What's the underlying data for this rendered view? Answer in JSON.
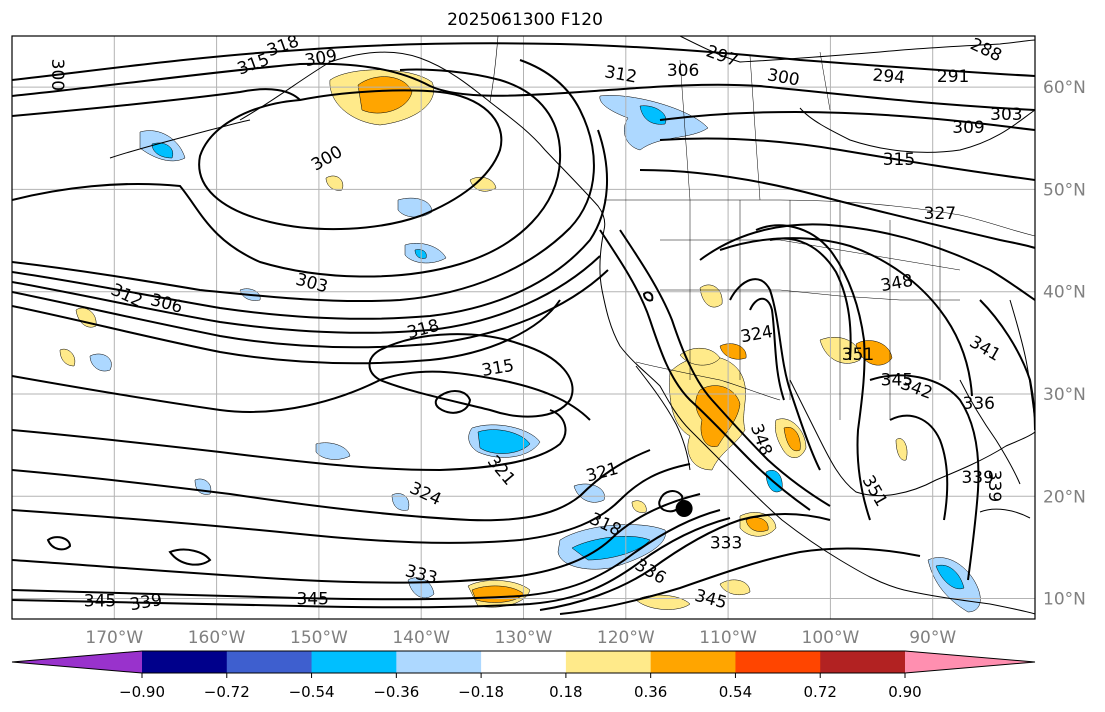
{
  "title": "2025061300 F120",
  "map": {
    "lon_range": [
      -180,
      -80
    ],
    "lat_range": [
      8,
      65
    ],
    "lon_ticks": [
      -170,
      -160,
      -150,
      -140,
      -130,
      -120,
      -110,
      -100,
      -90
    ],
    "lon_labels": [
      "170°W",
      "160°W",
      "150°W",
      "140°W",
      "130°W",
      "120°W",
      "110°W",
      "100°W",
      "90°W"
    ],
    "lat_ticks": [
      10,
      20,
      30,
      40,
      50,
      60
    ],
    "lat_labels": [
      "10°N",
      "20°N",
      "30°N",
      "40°N",
      "50°N",
      "60°N"
    ],
    "grid": true,
    "tick_label_color": "#808080",
    "marker": {
      "lon": -114.3,
      "lat": 18.8,
      "name": "storm-center-marker"
    }
  },
  "contours": {
    "color": "#000000",
    "labels": [
      {
        "text": "300",
        "lon": -175.6,
        "lat": 61.2,
        "rot": 90
      },
      {
        "text": "315",
        "lon": -156.4,
        "lat": 62.2,
        "rot": -20
      },
      {
        "text": "318",
        "lon": -153.5,
        "lat": 64.0,
        "rot": -20
      },
      {
        "text": "309",
        "lon": -149.8,
        "lat": 62.8,
        "rot": -10
      },
      {
        "text": "300",
        "lon": -149.2,
        "lat": 53.0,
        "rot": -30
      },
      {
        "text": "297",
        "lon": -110.6,
        "lat": 63.0,
        "rot": 20
      },
      {
        "text": "312",
        "lon": -120.5,
        "lat": 61.2,
        "rot": 10
      },
      {
        "text": "306",
        "lon": -114.4,
        "lat": 61.6,
        "rot": 0
      },
      {
        "text": "300",
        "lon": -104.6,
        "lat": 60.9,
        "rot": 10
      },
      {
        "text": "294",
        "lon": -94.3,
        "lat": 61.0,
        "rot": 5
      },
      {
        "text": "291",
        "lon": -88.0,
        "lat": 61.0,
        "rot": 0
      },
      {
        "text": "288",
        "lon": -84.8,
        "lat": 63.6,
        "rot": 25
      },
      {
        "text": "303",
        "lon": -82.8,
        "lat": 57.3,
        "rot": 0
      },
      {
        "text": "309",
        "lon": -86.5,
        "lat": 56.0,
        "rot": 0
      },
      {
        "text": "315",
        "lon": -93.3,
        "lat": 52.9,
        "rot": 0
      },
      {
        "text": "327",
        "lon": -89.3,
        "lat": 47.6,
        "rot": 0
      },
      {
        "text": "303",
        "lon": -150.7,
        "lat": 40.8,
        "rot": 15
      },
      {
        "text": "312",
        "lon": -168.8,
        "lat": 39.6,
        "rot": 25
      },
      {
        "text": "306",
        "lon": -164.9,
        "lat": 38.8,
        "rot": 15
      },
      {
        "text": "318",
        "lon": -139.8,
        "lat": 36.3,
        "rot": -15
      },
      {
        "text": "315",
        "lon": -132.5,
        "lat": 32.5,
        "rot": -10
      },
      {
        "text": "324",
        "lon": -107.2,
        "lat": 35.8,
        "rot": -10
      },
      {
        "text": "348",
        "lon": -93.5,
        "lat": 40.8,
        "rot": -10
      },
      {
        "text": "351",
        "lon": -97.3,
        "lat": 33.8,
        "rot": 0
      },
      {
        "text": "345",
        "lon": -93.5,
        "lat": 31.3,
        "rot": 0
      },
      {
        "text": "342",
        "lon": -91.6,
        "lat": 30.5,
        "rot": 20
      },
      {
        "text": "341",
        "lon": -84.9,
        "lat": 34.4,
        "rot": 30
      },
      {
        "text": "321",
        "lon": -132.2,
        "lat": 22.5,
        "rot": 50
      },
      {
        "text": "321",
        "lon": -122.3,
        "lat": 22.3,
        "rot": -15
      },
      {
        "text": "324",
        "lon": -139.6,
        "lat": 20.2,
        "rot": 25
      },
      {
        "text": "318",
        "lon": -122.0,
        "lat": 17.2,
        "rot": 25
      },
      {
        "text": "333",
        "lon": -140.0,
        "lat": 12.3,
        "rot": 15
      },
      {
        "text": "336",
        "lon": -117.6,
        "lat": 12.6,
        "rot": 30
      },
      {
        "text": "333",
        "lon": -110.2,
        "lat": 15.4,
        "rot": 0
      },
      {
        "text": "345",
        "lon": -150.6,
        "lat": 9.9,
        "rot": 0
      },
      {
        "text": "345",
        "lon": -171.4,
        "lat": 9.7,
        "rot": 0
      },
      {
        "text": "339",
        "lon": -166.9,
        "lat": 9.6,
        "rot": -10
      },
      {
        "text": "345",
        "lon": -111.7,
        "lat": 9.9,
        "rot": 15
      },
      {
        "text": "348",
        "lon": -106.8,
        "lat": 25.5,
        "rot": 70
      },
      {
        "text": "351",
        "lon": -95.7,
        "lat": 20.5,
        "rot": 60
      },
      {
        "text": "336",
        "lon": -85.5,
        "lat": 29.0,
        "rot": 0
      },
      {
        "text": "339",
        "lon": -85.6,
        "lat": 21.8,
        "rot": 0
      },
      {
        "text": "339",
        "lon": -84.0,
        "lat": 21.0,
        "rot": 90
      }
    ]
  },
  "colorbar": {
    "boundaries": [
      "−0.90",
      "−0.72",
      "−0.54",
      "−0.36",
      "−0.18",
      "0.18",
      "0.36",
      "0.54",
      "0.72",
      "0.90"
    ],
    "colors": [
      "#9932cc",
      "#00008b",
      "#3e5fcf",
      "#00bfff",
      "#add8ff",
      "#ffffff",
      "#ffea8a",
      "#ffa500",
      "#ff4500",
      "#b22222",
      "#ff8fb0"
    ]
  }
}
